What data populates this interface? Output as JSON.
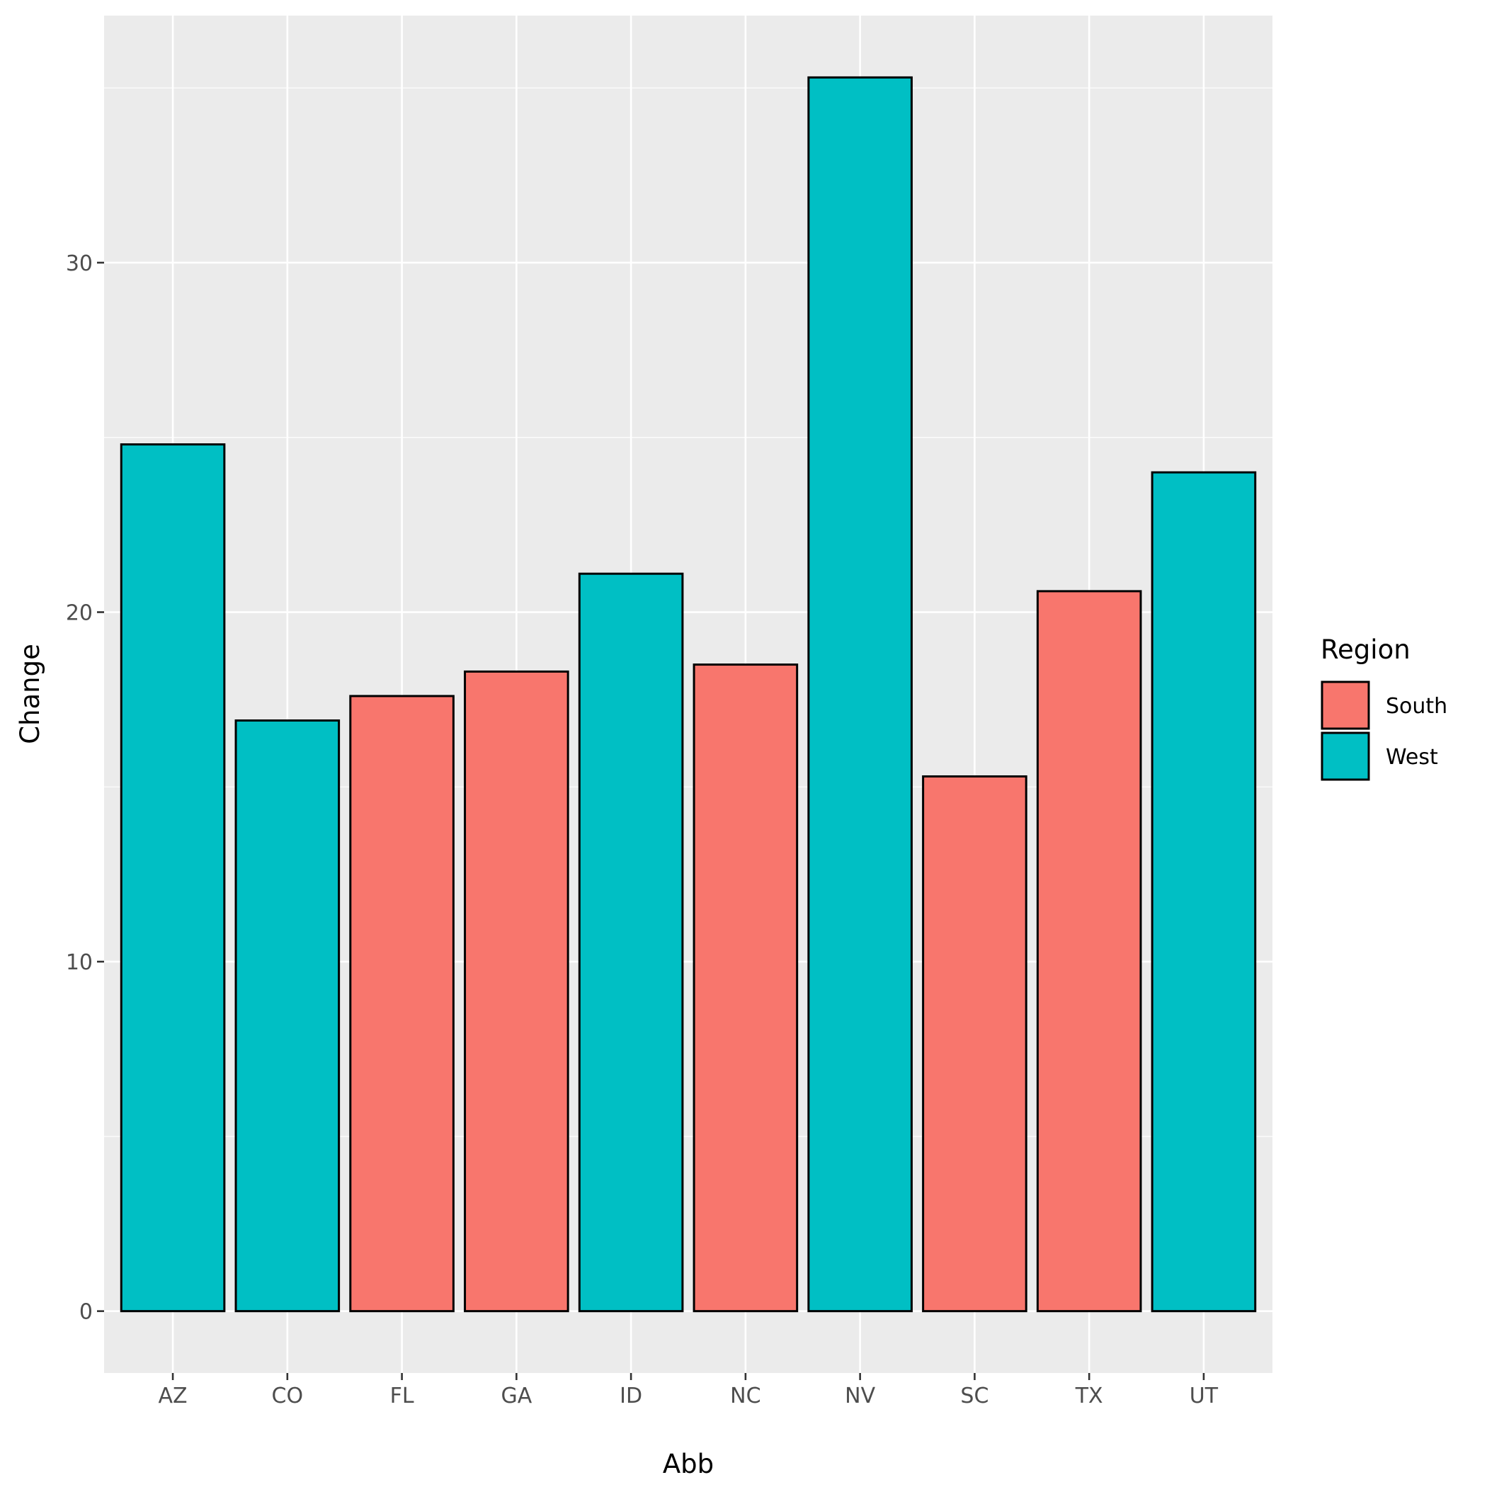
{
  "chart_data": {
    "type": "bar",
    "categories": [
      "AZ",
      "CO",
      "FL",
      "GA",
      "ID",
      "NC",
      "NV",
      "SC",
      "TX",
      "UT"
    ],
    "values": [
      24.8,
      16.9,
      17.6,
      18.3,
      21.1,
      18.5,
      35.3,
      15.3,
      20.6,
      24.0
    ],
    "groups": [
      "West",
      "West",
      "South",
      "South",
      "West",
      "South",
      "West",
      "South",
      "South",
      "West"
    ],
    "xlabel": "Abb",
    "ylabel": "Change",
    "ylim": [
      -1.77,
      37.07
    ],
    "yticks": [
      0,
      10,
      20,
      30
    ],
    "grid": true,
    "legend": {
      "title": "Region",
      "position": "right",
      "items": [
        {
          "name": "South",
          "color": "#F8766D"
        },
        {
          "name": "West",
          "color": "#00BFC4"
        }
      ]
    },
    "colors": {
      "panel": "#EBEBEB",
      "grid": "#FFFFFF",
      "bar_outline": "#000000"
    }
  }
}
